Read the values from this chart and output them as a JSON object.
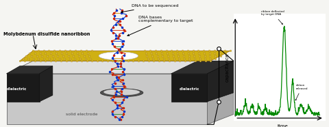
{
  "bg_color": "#f5f5f2",
  "graph": {
    "x_label": "time",
    "y_label": "capacitance",
    "line_color": "#008800",
    "annotation1": "ribbon deflected\nby target DNA",
    "annotation2": "ribbon\nreleased"
  },
  "labels": {
    "dielectric_left": "dielectric",
    "dielectric_right": "dielectric",
    "solid_electrode": "solid electrode",
    "nanoribbon": "Molybdenum disulfide nanoribbon",
    "dna_seq": "DNA to be sequenced",
    "dna_bases": "DNA bases\ncomplementary to target"
  },
  "colors": {
    "platform_front": "#c8c8c8",
    "platform_top": "#e0e0e0",
    "platform_right": "#a8a8a8",
    "dielectric_front": "#1a1a1a",
    "dielectric_top": "#2e2e2e",
    "dielectric_side": "#222222",
    "ribbon": "#ccaa00",
    "ribbon_edge": "#996600",
    "hole_outer": "#505050",
    "hole_inner": "#d0d0d0",
    "dna_strand1": "#cc2200",
    "dna_strand2": "#0033cc",
    "dna_green": "#228822",
    "dna_orange": "#cc8800"
  }
}
